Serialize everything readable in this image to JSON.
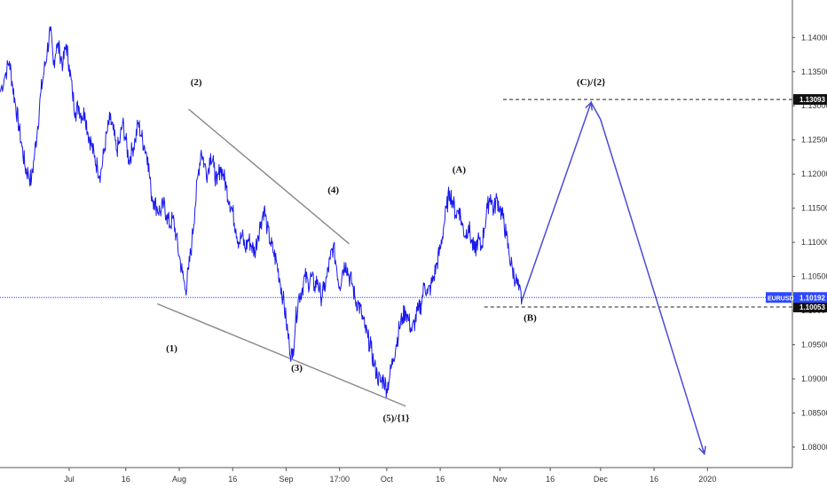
{
  "window": {
    "title": ""
  },
  "chart_data": {
    "type": "line",
    "symbol": "EURUSD",
    "title": "",
    "xlabel": "",
    "ylabel": "",
    "ylim": [
      1.077,
      1.1455
    ],
    "grid": false,
    "y_ticks": [
      "1.14000",
      "1.13500",
      "1.13000",
      "1.12500",
      "1.12000",
      "1.11500",
      "1.11000",
      "1.10500",
      "1.10000",
      "1.09500",
      "1.09000",
      "1.08500",
      "1.08000"
    ],
    "x_ticks": [
      {
        "label": "Jul",
        "t": 11
      },
      {
        "label": "16",
        "t": 20
      },
      {
        "label": "Aug",
        "t": 28.5
      },
      {
        "label": "16",
        "t": 37
      },
      {
        "label": "Sep",
        "t": 45.5
      },
      {
        "label": "17:00",
        "t": 54
      },
      {
        "label": "Oct",
        "t": 61.5
      },
      {
        "label": "16",
        "t": 70
      },
      {
        "label": "Nov",
        "t": 79.5
      },
      {
        "label": "16",
        "t": 87.5
      },
      {
        "label": "Dec",
        "t": 95.5
      },
      {
        "label": "16",
        "t": 104
      },
      {
        "label": "2020",
        "t": 112.5
      }
    ],
    "series": [
      {
        "name": "EURUSD",
        "color": "#1a1aee",
        "points": [
          [
            0,
            1.132
          ],
          [
            0.8,
            1.1345
          ],
          [
            1.5,
            1.1365
          ],
          [
            2,
            1.133
          ],
          [
            2.5,
            1.13
          ],
          [
            3,
            1.127
          ],
          [
            3.5,
            1.124
          ],
          [
            4,
            1.121
          ],
          [
            4.5,
            1.12
          ],
          [
            5,
            1.119
          ],
          [
            5.5,
            1.123
          ],
          [
            6,
            1.127
          ],
          [
            6.5,
            1.132
          ],
          [
            7,
            1.135
          ],
          [
            7.5,
            1.138
          ],
          [
            8,
            1.141
          ],
          [
            8.5,
            1.136
          ],
          [
            9,
            1.139
          ],
          [
            9.5,
            1.138
          ],
          [
            10,
            1.136
          ],
          [
            10.5,
            1.139
          ],
          [
            11,
            1.136
          ],
          [
            11.5,
            1.132
          ],
          [
            12,
            1.129
          ],
          [
            12.5,
            1.13
          ],
          [
            13,
            1.1285
          ],
          [
            13.5,
            1.129
          ],
          [
            14,
            1.126
          ],
          [
            14.5,
            1.1245
          ],
          [
            15,
            1.1225
          ],
          [
            15.5,
            1.121
          ],
          [
            16,
            1.12
          ],
          [
            16.5,
            1.123
          ],
          [
            17,
            1.126
          ],
          [
            17.5,
            1.128
          ],
          [
            18,
            1.1265
          ],
          [
            18.5,
            1.1235
          ],
          [
            19,
            1.1245
          ],
          [
            19.5,
            1.1275
          ],
          [
            20,
            1.125
          ],
          [
            20.5,
            1.122
          ],
          [
            21,
            1.1235
          ],
          [
            21.5,
            1.125
          ],
          [
            22,
            1.1275
          ],
          [
            22.5,
            1.1255
          ],
          [
            23,
            1.124
          ],
          [
            23.5,
            1.1225
          ],
          [
            24,
            1.1175
          ],
          [
            24.5,
            1.116
          ],
          [
            25,
            1.115
          ],
          [
            25.5,
            1.1145
          ],
          [
            26,
            1.1155
          ],
          [
            26.5,
            1.114
          ],
          [
            27,
            1.1125
          ],
          [
            27.5,
            1.1135
          ],
          [
            28,
            1.111
          ],
          [
            28.5,
            1.108
          ],
          [
            29,
            1.1055
          ],
          [
            29.5,
            1.103
          ],
          [
            30,
            1.106
          ],
          [
            30.5,
            1.11
          ],
          [
            31,
            1.115
          ],
          [
            31.5,
            1.12
          ],
          [
            32,
            1.1235
          ],
          [
            32.5,
            1.1215
          ],
          [
            33,
            1.12
          ],
          [
            33.5,
            1.123
          ],
          [
            34,
            1.121
          ],
          [
            34.5,
            1.1185
          ],
          [
            35,
            1.121
          ],
          [
            35.5,
            1.12
          ],
          [
            36,
            1.118
          ],
          [
            36.5,
            1.116
          ],
          [
            37,
            1.1145
          ],
          [
            37.5,
            1.112
          ],
          [
            38,
            1.11
          ],
          [
            38.5,
            1.111
          ],
          [
            39,
            1.109
          ],
          [
            39.5,
            1.1105
          ],
          [
            40,
            1.1095
          ],
          [
            40.5,
            1.1085
          ],
          [
            41,
            1.111
          ],
          [
            41.5,
            1.113
          ],
          [
            42,
            1.115
          ],
          [
            42.5,
            1.112
          ],
          [
            43,
            1.11
          ],
          [
            43.5,
            1.1085
          ],
          [
            44,
            1.107
          ],
          [
            44.5,
            1.1045
          ],
          [
            45,
            1.102
          ],
          [
            45.5,
            1.0985
          ],
          [
            46,
            1.095
          ],
          [
            46.5,
            1.093
          ],
          [
            47,
            1.0985
          ],
          [
            47.5,
            1.102
          ],
          [
            48,
            1.103
          ],
          [
            48.5,
            1.105
          ],
          [
            49,
            1.104
          ],
          [
            49.5,
            1.105
          ],
          [
            50,
            1.1035
          ],
          [
            50.5,
            1.1045
          ],
          [
            51,
            1.102
          ],
          [
            51.5,
            1.103
          ],
          [
            52,
            1.105
          ],
          [
            52.5,
            1.1075
          ],
          [
            53,
            1.1095
          ],
          [
            53.5,
            1.1065
          ],
          [
            54,
            1.1035
          ],
          [
            54.5,
            1.106
          ],
          [
            55,
            1.107
          ],
          [
            55.5,
            1.105
          ],
          [
            56,
            1.104
          ],
          [
            56.5,
            1.1015
          ],
          [
            57,
            1.101
          ],
          [
            57.5,
            1.0995
          ],
          [
            58,
            1.0975
          ],
          [
            58.5,
            1.096
          ],
          [
            59,
            1.0945
          ],
          [
            59.5,
            1.092
          ],
          [
            60,
            1.0905
          ],
          [
            60.5,
            1.0895
          ],
          [
            61,
            1.09
          ],
          [
            61.5,
            1.0885
          ],
          [
            62,
            1.0905
          ],
          [
            62.5,
            1.093
          ],
          [
            63,
            1.095
          ],
          [
            63.5,
            1.0975
          ],
          [
            64,
            1.099
          ],
          [
            64.5,
            1.1
          ],
          [
            65,
            1.0985
          ],
          [
            65.5,
            1.097
          ],
          [
            66,
            1.0985
          ],
          [
            66.5,
            1.1
          ],
          [
            67,
            1.101
          ],
          [
            67.5,
            1.104
          ],
          [
            68,
            1.1025
          ],
          [
            68.5,
            1.1035
          ],
          [
            69,
            1.105
          ],
          [
            69.5,
            1.107
          ],
          [
            70,
            1.109
          ],
          [
            70.5,
            1.112
          ],
          [
            71,
            1.115
          ],
          [
            71.5,
            1.1175
          ],
          [
            72,
            1.116
          ],
          [
            72.5,
            1.114
          ],
          [
            73,
            1.115
          ],
          [
            73.5,
            1.1125
          ],
          [
            74,
            1.111
          ],
          [
            74.5,
            1.1125
          ],
          [
            75,
            1.11
          ],
          [
            75.5,
            1.1085
          ],
          [
            76,
            1.1105
          ],
          [
            76.5,
            1.109
          ],
          [
            77,
            1.112
          ],
          [
            77.5,
            1.115
          ],
          [
            78,
            1.117
          ],
          [
            78.5,
            1.1145
          ],
          [
            79,
            1.1165
          ],
          [
            79.5,
            1.115
          ],
          [
            80,
            1.1135
          ],
          [
            80.5,
            1.111
          ],
          [
            81,
            1.108
          ],
          [
            81.5,
            1.106
          ],
          [
            82,
            1.1045
          ],
          [
            82.5,
            1.103
          ],
          [
            83,
            1.1015
          ]
        ]
      }
    ],
    "current_price": {
      "symbol": "EURUSD",
      "value": 1.10192,
      "label": "1.10192"
    },
    "levels": [
      {
        "value": 1.13093,
        "label": "1.13093",
        "t_start": 80
      },
      {
        "value": 1.10053,
        "label": "1.10053",
        "t_start": 77
      }
    ],
    "projection": [
      [
        83,
        1.1015
      ],
      [
        94,
        1.1305
      ],
      [
        95.5,
        1.128
      ],
      [
        112,
        1.079
      ]
    ],
    "channel_lines": [
      {
        "from": [
          30,
          1.1295
        ],
        "to": [
          55.5,
          1.1098
        ]
      },
      {
        "from": [
          25,
          1.101
        ],
        "to": [
          64.5,
          1.086
        ]
      }
    ],
    "annotations": [
      {
        "text": "(1)",
        "t": 27.3,
        "y": 1.094
      },
      {
        "text": "(2)",
        "t": 31.2,
        "y": 1.133
      },
      {
        "text": "(3)",
        "t": 47.2,
        "y": 1.0912
      },
      {
        "text": "(4)",
        "t": 53.0,
        "y": 1.1172
      },
      {
        "text": "(5)/{1}",
        "t": 63.0,
        "y": 1.0838
      },
      {
        "text": "(A)",
        "t": 73.0,
        "y": 1.1202
      },
      {
        "text": "(B)",
        "t": 84.3,
        "y": 1.0985
      },
      {
        "text": "(C)/{2}",
        "t": 94.0,
        "y": 1.133
      }
    ]
  }
}
